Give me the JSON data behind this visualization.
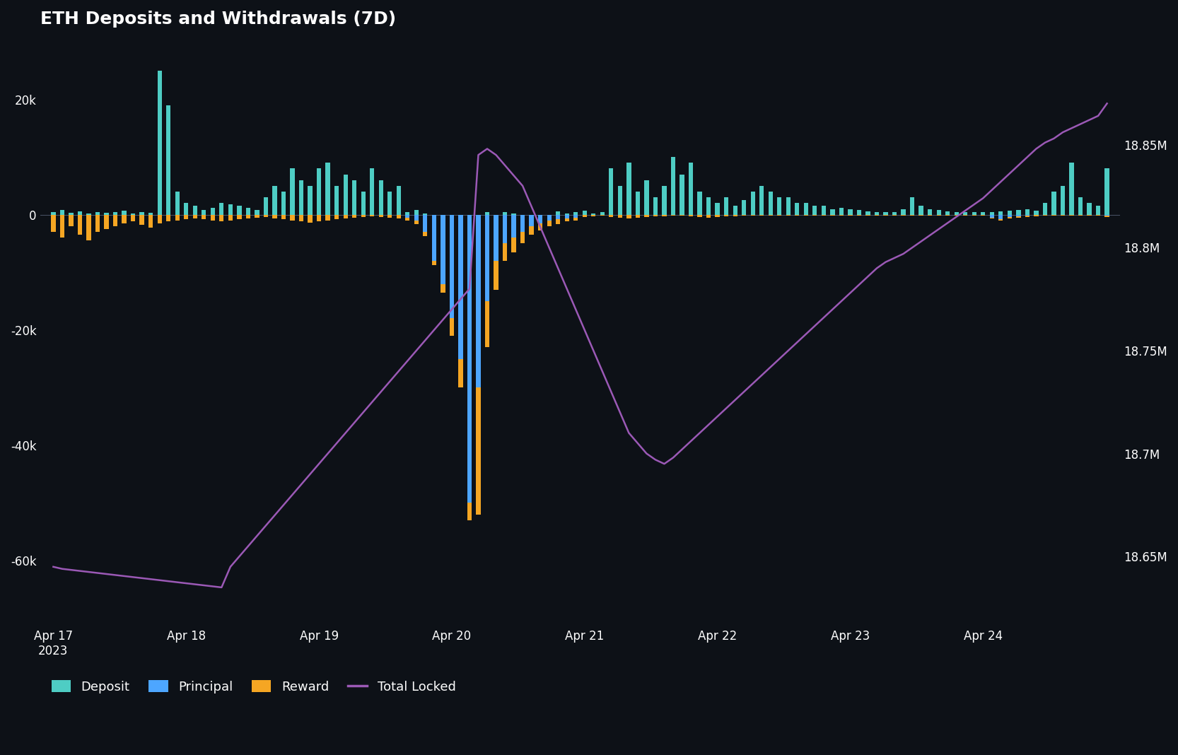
{
  "title": "ETH Deposits and Withdrawals (7D)",
  "bg_color": "#0d1117",
  "deposit_color": "#4ecdc4",
  "principal_color": "#4da6ff",
  "reward_color": "#f5a623",
  "total_locked_color": "#9b59b6",
  "ylim_left": [
    -70000,
    30000
  ],
  "ylim_right": [
    18620000,
    18900000
  ],
  "yticks_left": [
    -60000,
    -40000,
    -20000,
    0,
    20000
  ],
  "ytick_labels_left": [
    "-60k",
    "-40k",
    "-20k",
    "0",
    "20k"
  ],
  "yticks_right": [
    18650000,
    18700000,
    18750000,
    18800000,
    18850000
  ],
  "ytick_labels_right": [
    "18.65M",
    "18.7M",
    "18.75M",
    "18.8M",
    "18.85M"
  ],
  "legend_labels": [
    "Deposit",
    "Principal",
    "Reward",
    "Total Locked"
  ],
  "line_width": 1.8,
  "bar_width": 0.5,
  "n_bars": 120,
  "deposit_values": [
    500,
    800,
    300,
    600,
    200,
    400,
    300,
    500,
    700,
    200,
    400,
    300,
    25000,
    19000,
    4000,
    2000,
    1500,
    800,
    1200,
    2000,
    1800,
    1500,
    1200,
    800,
    3000,
    5000,
    4000,
    8000,
    6000,
    5000,
    8000,
    9000,
    5000,
    7000,
    6000,
    4000,
    8000,
    6000,
    4000,
    5000,
    500,
    800,
    200,
    0,
    0,
    0,
    0,
    0,
    0,
    500,
    0,
    400,
    200,
    0,
    0,
    0,
    0,
    600,
    200,
    500,
    700,
    200,
    400,
    8000,
    5000,
    9000,
    4000,
    6000,
    3000,
    5000,
    10000,
    7000,
    9000,
    4000,
    3000,
    2000,
    3000,
    1500,
    2500,
    4000,
    5000,
    4000,
    3000,
    3000,
    2000,
    2000,
    1500,
    1500,
    1000,
    1200,
    1000,
    800,
    600,
    500,
    500,
    400,
    1000,
    3000,
    1500,
    1000,
    800,
    600,
    500,
    500,
    400,
    400,
    500,
    600,
    700,
    800,
    900,
    700,
    2000,
    4000,
    5000,
    9000,
    3000,
    2000,
    1500,
    8000
  ],
  "principal_values": [
    0,
    0,
    0,
    0,
    0,
    0,
    0,
    0,
    0,
    0,
    0,
    0,
    0,
    0,
    0,
    0,
    0,
    0,
    0,
    0,
    0,
    0,
    0,
    0,
    0,
    0,
    0,
    0,
    0,
    0,
    0,
    0,
    0,
    0,
    0,
    0,
    0,
    0,
    0,
    0,
    -500,
    -1000,
    -3000,
    -8000,
    -12000,
    -18000,
    -25000,
    -50000,
    -30000,
    -15000,
    -8000,
    -5000,
    -4000,
    -3000,
    -2000,
    -1500,
    -1000,
    -800,
    -600,
    -500,
    0,
    0,
    0,
    0,
    0,
    0,
    0,
    0,
    0,
    0,
    0,
    0,
    0,
    0,
    0,
    0,
    0,
    0,
    0,
    0,
    0,
    0,
    0,
    0,
    0,
    0,
    0,
    0,
    0,
    0,
    0,
    0,
    0,
    0,
    0,
    0,
    0,
    0,
    0,
    0,
    0,
    0,
    0,
    0,
    0,
    0,
    -500,
    -800,
    -400,
    -300,
    -200,
    -100,
    0,
    0,
    0,
    0,
    0,
    0,
    0,
    -200
  ],
  "reward_values": [
    -3000,
    -4000,
    -2000,
    -3500,
    -4500,
    -3000,
    -2500,
    -2000,
    -1500,
    -1200,
    -1800,
    -2200,
    -1500,
    -1200,
    -1000,
    -800,
    -600,
    -800,
    -1000,
    -1200,
    -1000,
    -800,
    -600,
    -500,
    -400,
    -600,
    -800,
    -1000,
    -1200,
    -1400,
    -1200,
    -1000,
    -800,
    -600,
    -500,
    -400,
    -300,
    -400,
    -500,
    -600,
    -500,
    -600,
    -700,
    -800,
    -1500,
    -3000,
    -5000,
    -3000,
    -22000,
    -8000,
    -5000,
    -3000,
    -2500,
    -2000,
    -1500,
    -1200,
    -1000,
    -800,
    -600,
    -500,
    -400,
    -300,
    -200,
    -400,
    -500,
    -600,
    -500,
    -400,
    -300,
    -250,
    -200,
    -200,
    -300,
    -400,
    -500,
    -400,
    -300,
    -300,
    -200,
    -200,
    -200,
    -200,
    -200,
    -200,
    -200,
    -200,
    -200,
    -200,
    -200,
    -200,
    -200,
    -200,
    -200,
    -200,
    -200,
    -200,
    -200,
    -200,
    -200,
    -200,
    -200,
    -200,
    -200,
    -200,
    -200,
    -200,
    -200,
    -200,
    -200,
    -200,
    -200,
    -200,
    -200,
    -200,
    -200,
    -200,
    -200,
    -200,
    -200,
    -200
  ],
  "total_locked": [
    18645000,
    18644000,
    18643500,
    18643000,
    18642500,
    18642000,
    18641500,
    18641000,
    18640500,
    18640000,
    18639500,
    18639000,
    18638500,
    18638000,
    18637500,
    18637000,
    18636500,
    18636000,
    18635500,
    18635000,
    18645000,
    18650000,
    18655000,
    18660000,
    18665000,
    18670000,
    18675000,
    18680000,
    18685000,
    18690000,
    18695000,
    18700000,
    18705000,
    18710000,
    18715000,
    18720000,
    18725000,
    18730000,
    18735000,
    18740000,
    18745000,
    18750000,
    18755000,
    18760000,
    18765000,
    18770000,
    18775000,
    18780000,
    18845000,
    18848000,
    18845000,
    18840000,
    18835000,
    18830000,
    18820000,
    18810000,
    18800000,
    18790000,
    18780000,
    18770000,
    18760000,
    18750000,
    18740000,
    18730000,
    18720000,
    18710000,
    18705000,
    18700000,
    18697000,
    18695000,
    18698000,
    18702000,
    18706000,
    18710000,
    18714000,
    18718000,
    18722000,
    18726000,
    18730000,
    18734000,
    18738000,
    18742000,
    18746000,
    18750000,
    18754000,
    18758000,
    18762000,
    18766000,
    18770000,
    18774000,
    18778000,
    18782000,
    18786000,
    18790000,
    18793000,
    18795000,
    18797000,
    18800000,
    18803000,
    18806000,
    18809000,
    18812000,
    18815000,
    18818000,
    18821000,
    18824000,
    18828000,
    18832000,
    18836000,
    18840000,
    18844000,
    18848000,
    18851000,
    18853000,
    18856000,
    18858000,
    18860000,
    18862000,
    18864000,
    18870000
  ],
  "xtick_day_indices": [
    0,
    15,
    30,
    45,
    60,
    75,
    90,
    105
  ],
  "xtick_labels": [
    "Apr 17\n2023",
    "Apr 18",
    "Apr 19",
    "Apr 20",
    "Apr 21",
    "Apr 22",
    "Apr 23",
    "Apr 24"
  ]
}
